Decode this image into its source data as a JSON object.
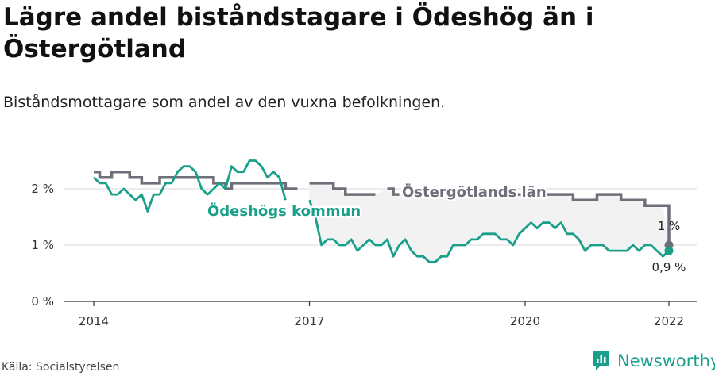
{
  "title": "Lägre andel biståndstagare i Ödeshög än i Östergötland",
  "subtitle": "Biståndsmottagare som andel av den vuxna befolkningen.",
  "source": "Källa: Socialstyrelsen",
  "brand": {
    "name": "Newsworthy",
    "icon": "newsworthy-logo-icon",
    "color": "#1aa08a"
  },
  "chart_data": {
    "type": "line",
    "ylim": [
      0,
      3
    ],
    "y_ticks": [
      0,
      1,
      2
    ],
    "y_tick_labels": [
      "0 %",
      "1 %",
      "2 %"
    ],
    "x_ticks": [
      2014,
      2017,
      2020,
      2022
    ],
    "x_tick_labels": [
      "2014",
      "2017",
      "2020",
      "2022"
    ],
    "grid": true,
    "series": [
      {
        "name": "Östergötlands län",
        "color": "#6f6f79",
        "end_label": "1 %",
        "points": [
          [
            2014.0,
            2.3
          ],
          [
            2014.083,
            2.2
          ],
          [
            2014.167,
            2.2
          ],
          [
            2014.25,
            2.3
          ],
          [
            2014.333,
            2.3
          ],
          [
            2014.417,
            2.3
          ],
          [
            2014.5,
            2.2
          ],
          [
            2014.583,
            2.2
          ],
          [
            2014.667,
            2.1
          ],
          [
            2014.75,
            2.1
          ],
          [
            2014.833,
            2.1
          ],
          [
            2014.917,
            2.2
          ],
          [
            2015.0,
            2.2
          ],
          [
            2015.083,
            2.2
          ],
          [
            2015.167,
            2.2
          ],
          [
            2015.25,
            2.2
          ],
          [
            2015.333,
            2.2
          ],
          [
            2015.417,
            2.2
          ],
          [
            2015.5,
            2.2
          ],
          [
            2015.583,
            2.2
          ],
          [
            2015.667,
            2.1
          ],
          [
            2015.75,
            2.1
          ],
          [
            2015.833,
            2.0
          ],
          [
            2015.917,
            2.1
          ],
          [
            2016.0,
            2.1
          ],
          [
            2016.083,
            2.1
          ],
          [
            2016.167,
            2.1
          ],
          [
            2016.25,
            2.1
          ],
          [
            2016.333,
            2.1
          ],
          [
            2016.417,
            2.1
          ],
          [
            2016.5,
            2.1
          ],
          [
            2016.583,
            2.1
          ],
          [
            2016.667,
            2.0
          ],
          [
            2016.75,
            2.0
          ],
          [
            2016.833,
            2.0
          ],
          null,
          [
            2017.0,
            2.1
          ],
          [
            2017.083,
            2.1
          ],
          [
            2017.167,
            2.1
          ],
          [
            2017.25,
            2.1
          ],
          [
            2017.333,
            2.0
          ],
          [
            2017.417,
            2.0
          ],
          [
            2017.5,
            1.9
          ],
          [
            2017.583,
            1.9
          ],
          [
            2017.667,
            1.9
          ],
          [
            2017.75,
            1.9
          ],
          [
            2017.833,
            1.9
          ],
          [
            2017.917,
            1.9
          ],
          null,
          [
            2018.083,
            2.0
          ],
          [
            2018.167,
            1.9
          ],
          [
            2018.25,
            1.9
          ],
          null,
          [
            2019.583,
            1.9
          ],
          [
            2019.667,
            1.9
          ],
          [
            2019.75,
            1.9
          ],
          [
            2019.833,
            1.9
          ],
          [
            2019.917,
            1.9
          ],
          [
            2020.0,
            1.9
          ],
          [
            2020.083,
            1.9
          ],
          [
            2020.167,
            1.9
          ],
          [
            2020.25,
            1.9
          ],
          [
            2020.333,
            1.9
          ],
          [
            2020.417,
            1.9
          ],
          [
            2020.5,
            1.9
          ],
          [
            2020.583,
            1.9
          ],
          [
            2020.667,
            1.8
          ],
          [
            2020.75,
            1.8
          ],
          [
            2020.833,
            1.8
          ],
          [
            2020.917,
            1.8
          ],
          [
            2021.0,
            1.9
          ],
          [
            2021.083,
            1.9
          ],
          [
            2021.167,
            1.9
          ],
          [
            2021.25,
            1.9
          ],
          [
            2021.333,
            1.8
          ],
          [
            2021.417,
            1.8
          ],
          [
            2021.5,
            1.8
          ],
          [
            2021.583,
            1.8
          ],
          [
            2021.667,
            1.7
          ],
          [
            2021.75,
            1.7
          ],
          [
            2021.833,
            1.7
          ],
          [
            2021.917,
            1.7
          ],
          [
            2022.0,
            1.0
          ]
        ]
      },
      {
        "name": "Ödeshögs kommun",
        "color": "#1aa08a",
        "end_label": "0,9 %",
        "points": [
          [
            2014.0,
            2.2
          ],
          [
            2014.083,
            2.1
          ],
          [
            2014.167,
            2.1
          ],
          [
            2014.25,
            1.9
          ],
          [
            2014.333,
            1.9
          ],
          [
            2014.417,
            2.0
          ],
          [
            2014.5,
            1.9
          ],
          [
            2014.583,
            1.8
          ],
          [
            2014.667,
            1.9
          ],
          [
            2014.75,
            1.6
          ],
          [
            2014.833,
            1.9
          ],
          [
            2014.917,
            1.9
          ],
          [
            2015.0,
            2.1
          ],
          [
            2015.083,
            2.1
          ],
          [
            2015.167,
            2.3
          ],
          [
            2015.25,
            2.4
          ],
          [
            2015.333,
            2.4
          ],
          [
            2015.417,
            2.3
          ],
          [
            2015.5,
            2.0
          ],
          [
            2015.583,
            1.9
          ],
          [
            2015.667,
            2.0
          ],
          [
            2015.75,
            2.1
          ],
          [
            2015.833,
            2.0
          ],
          [
            2015.917,
            2.4
          ],
          [
            2016.0,
            2.3
          ],
          [
            2016.083,
            2.3
          ],
          [
            2016.167,
            2.5
          ],
          [
            2016.25,
            2.5
          ],
          [
            2016.333,
            2.4
          ],
          [
            2016.417,
            2.2
          ],
          [
            2016.5,
            2.3
          ],
          [
            2016.583,
            2.2
          ],
          [
            2016.667,
            1.8
          ],
          null,
          [
            2017.0,
            1.8
          ],
          [
            2017.083,
            1.5
          ],
          [
            2017.167,
            1.0
          ],
          [
            2017.25,
            1.1
          ],
          [
            2017.333,
            1.1
          ],
          [
            2017.417,
            1.0
          ],
          [
            2017.5,
            1.0
          ],
          [
            2017.583,
            1.1
          ],
          [
            2017.667,
            0.9
          ],
          [
            2017.75,
            1.0
          ],
          [
            2017.833,
            1.1
          ],
          [
            2017.917,
            1.0
          ],
          [
            2018.0,
            1.0
          ],
          [
            2018.083,
            1.1
          ],
          [
            2018.167,
            0.8
          ],
          [
            2018.25,
            1.0
          ],
          [
            2018.333,
            1.1
          ],
          [
            2018.417,
            0.9
          ],
          [
            2018.5,
            0.8
          ],
          [
            2018.583,
            0.8
          ],
          [
            2018.667,
            0.7
          ],
          [
            2018.75,
            0.7
          ],
          [
            2018.833,
            0.8
          ],
          [
            2018.917,
            0.8
          ],
          [
            2019.0,
            1.0
          ],
          [
            2019.083,
            1.0
          ],
          [
            2019.167,
            1.0
          ],
          [
            2019.25,
            1.1
          ],
          [
            2019.333,
            1.1
          ],
          [
            2019.417,
            1.2
          ],
          [
            2019.5,
            1.2
          ],
          [
            2019.583,
            1.2
          ],
          [
            2019.667,
            1.1
          ],
          [
            2019.75,
            1.1
          ],
          [
            2019.833,
            1.0
          ],
          [
            2019.917,
            1.2
          ],
          [
            2020.0,
            1.3
          ],
          [
            2020.083,
            1.4
          ],
          [
            2020.167,
            1.3
          ],
          [
            2020.25,
            1.4
          ],
          [
            2020.333,
            1.4
          ],
          [
            2020.417,
            1.3
          ],
          [
            2020.5,
            1.4
          ],
          [
            2020.583,
            1.2
          ],
          [
            2020.667,
            1.2
          ],
          [
            2020.75,
            1.1
          ],
          [
            2020.833,
            0.9
          ],
          [
            2020.917,
            1.0
          ],
          [
            2021.0,
            1.0
          ],
          [
            2021.083,
            1.0
          ],
          [
            2021.167,
            0.9
          ],
          [
            2021.25,
            0.9
          ],
          [
            2021.333,
            0.9
          ],
          [
            2021.417,
            0.9
          ],
          [
            2021.5,
            1.0
          ],
          [
            2021.583,
            0.9
          ],
          [
            2021.667,
            1.0
          ],
          [
            2021.75,
            1.0
          ],
          [
            2021.833,
            0.9
          ],
          [
            2021.917,
            0.8
          ],
          [
            2022.0,
            0.9
          ]
        ]
      }
    ]
  }
}
